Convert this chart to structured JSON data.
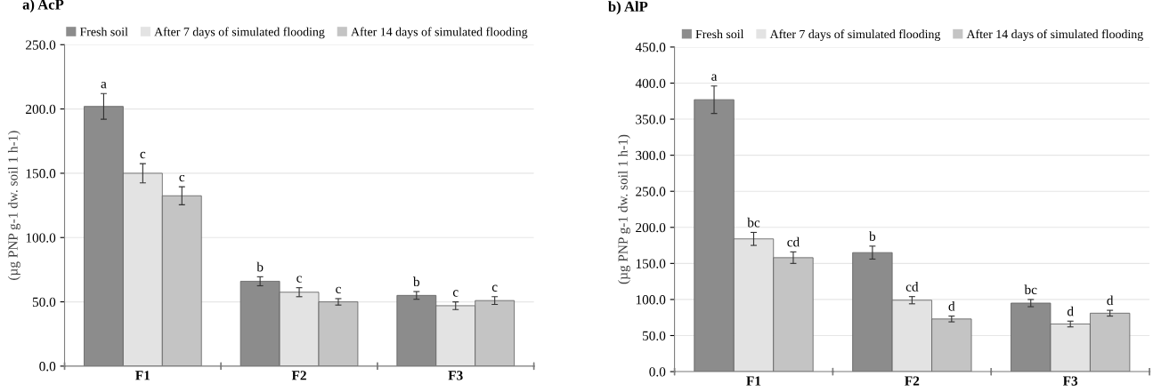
{
  "chart_data": [
    {
      "type": "bar",
      "title": "a) AcP",
      "ylabel": "(µg PNP g-1 dw. soil 1 h-1)",
      "categories": [
        "F1",
        "F2",
        "F3"
      ],
      "series": [
        {
          "name": "Fresh soil",
          "color": "#8c8c8c",
          "values": [
            202,
            66,
            55
          ],
          "errors": [
            10,
            3.5,
            3
          ]
        },
        {
          "name": "After 7 days of simulated flooding",
          "color": "#e3e3e3",
          "values": [
            150,
            57.5,
            47
          ],
          "errors": [
            7.5,
            3.5,
            3
          ]
        },
        {
          "name": "After 14 days of simulated flooding",
          "color": "#c4c4c4",
          "values": [
            132.5,
            50,
            51
          ],
          "errors": [
            7,
            2.5,
            3
          ]
        }
      ],
      "ylim": [
        0,
        250
      ],
      "yticks": [
        {
          "value": 0,
          "label": "0.0"
        },
        {
          "value": 50,
          "label": "50.0"
        },
        {
          "value": 100,
          "label": "100.0"
        },
        {
          "value": 150,
          "label": "150.0"
        },
        {
          "value": 200,
          "label": "200.0"
        },
        {
          "value": 250,
          "label": "250.0"
        }
      ],
      "grid": "y",
      "legend": "top",
      "annotations": [
        "a",
        "b",
        "b",
        "c",
        "c",
        "c",
        "c",
        "c",
        "c"
      ]
    },
    {
      "type": "bar",
      "title": "b) AlP",
      "ylabel": "(µg PNP g-1 dw. soil 1 h-1)",
      "categories": [
        "F1",
        "F2",
        "F3"
      ],
      "series": [
        {
          "name": "Fresh soil",
          "color": "#8c8c8c",
          "values": [
            377,
            165,
            95
          ],
          "errors": [
            19,
            9,
            5
          ]
        },
        {
          "name": "After 7 days of simulated flooding",
          "color": "#e3e3e3",
          "values": [
            184,
            99,
            66
          ],
          "errors": [
            9,
            5,
            4
          ]
        },
        {
          "name": "After 14 days of simulated flooding",
          "color": "#c4c4c4",
          "values": [
            158,
            73,
            81
          ],
          "errors": [
            8,
            4,
            4
          ]
        }
      ],
      "ylim": [
        0,
        450
      ],
      "yticks": [
        {
          "value": 0,
          "label": "0.0"
        },
        {
          "value": 50,
          "label": "50.0"
        },
        {
          "value": 100,
          "label": "100.0"
        },
        {
          "value": 150,
          "label": "150.0"
        },
        {
          "value": 200,
          "label": "200.0"
        },
        {
          "value": 250,
          "label": "250.0"
        },
        {
          "value": 300,
          "label": "300.0"
        },
        {
          "value": 350,
          "label": "350.0"
        },
        {
          "value": 400,
          "label": "400.0"
        },
        {
          "value": 450,
          "label": "450.0"
        }
      ],
      "grid": "y",
      "legend": "top",
      "annotations": [
        "a",
        "b",
        "bc",
        "bc",
        "cd",
        "d",
        "cd",
        "d",
        "d"
      ]
    }
  ]
}
